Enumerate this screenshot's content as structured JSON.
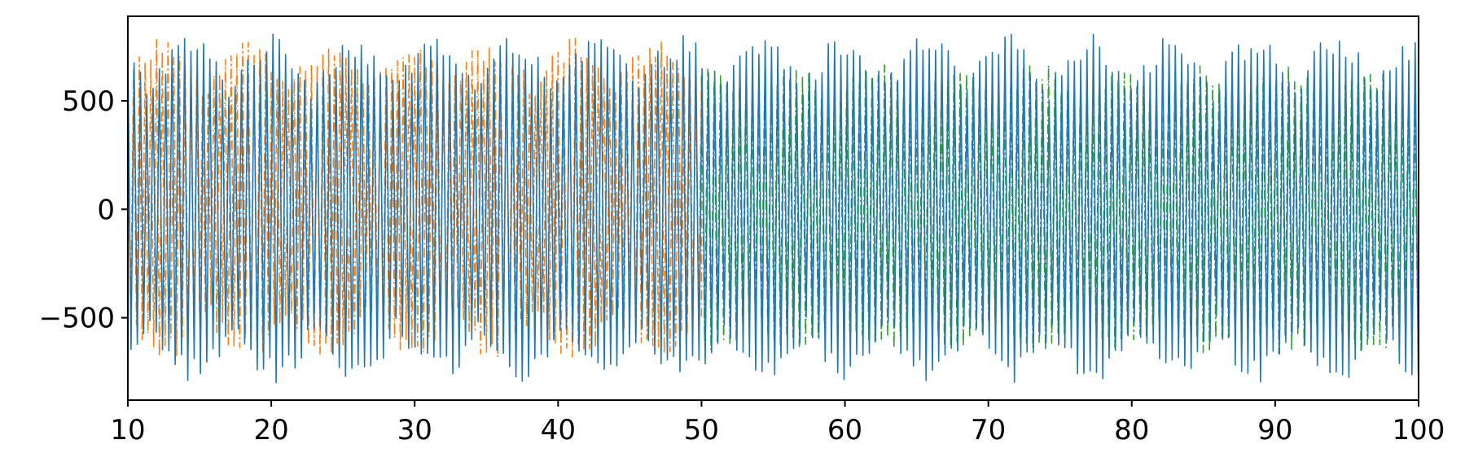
{
  "chart_data": {
    "type": "line",
    "title": "",
    "xlabel": "",
    "ylabel": "",
    "xlim": [
      10,
      100
    ],
    "ylim": [
      -880,
      890
    ],
    "xticks": [
      10,
      20,
      30,
      40,
      50,
      60,
      70,
      80,
      90,
      100
    ],
    "xtick_labels": [
      "10",
      "20",
      "30",
      "40",
      "50",
      "60",
      "70",
      "80",
      "90",
      "100"
    ],
    "yticks": [
      -500,
      0,
      500
    ],
    "ytick_labels": [
      "−500",
      "0",
      "500"
    ],
    "grid": false,
    "legend": "none",
    "series": [
      {
        "color": "#1f77b4",
        "linestyle": "solid",
        "x_range": [
          10,
          100
        ],
        "approx_envelope": [
          -800,
          810
        ],
        "approx_cycle_period": 0.44
      },
      {
        "color": "#ff7f0e",
        "linestyle": "dashdot",
        "x_range": [
          10,
          50
        ],
        "approx_envelope": [
          -700,
          790
        ],
        "approx_cycle_period": 0.4
      },
      {
        "color": "#2ca02c",
        "linestyle": "dashdot",
        "x_range": [
          50,
          100
        ],
        "approx_envelope": [
          -680,
          680
        ],
        "approx_cycle_period": 0.44
      }
    ]
  }
}
